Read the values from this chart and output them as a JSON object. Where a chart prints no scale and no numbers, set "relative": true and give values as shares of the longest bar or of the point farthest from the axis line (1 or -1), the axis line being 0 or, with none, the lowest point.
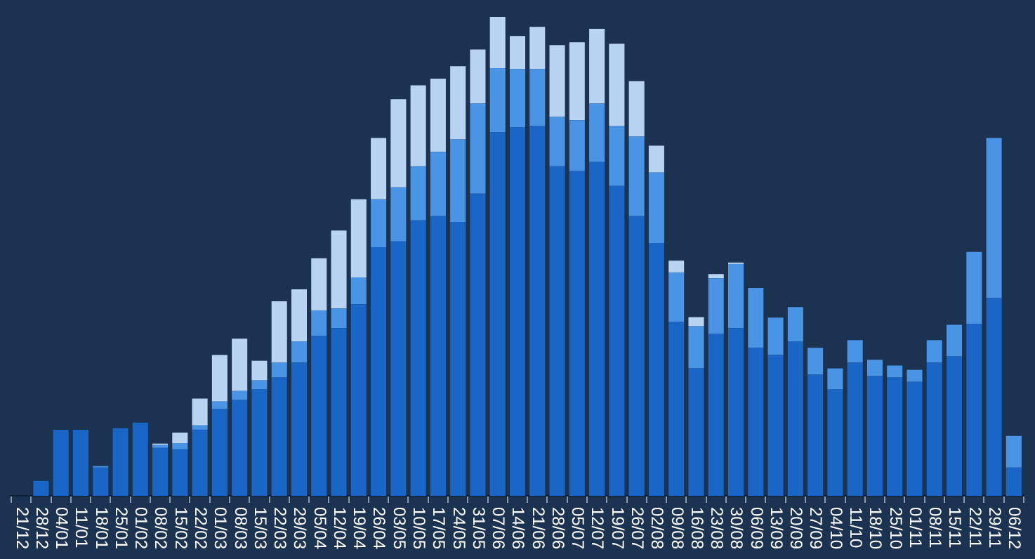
{
  "chart_data": {
    "type": "bar",
    "stacked": true,
    "relative": true,
    "legend": false,
    "grid": false,
    "categories": [
      "21/12",
      "28/12",
      "04/01",
      "11/01",
      "18/01",
      "25/01",
      "01/02",
      "08/02",
      "15/02",
      "22/02",
      "01/03",
      "08/03",
      "15/03",
      "22/03",
      "29/03",
      "05/04",
      "12/04",
      "19/04",
      "26/04",
      "03/05",
      "10/05",
      "17/05",
      "24/05",
      "31/05",
      "07/06",
      "14/06",
      "21/06",
      "28/06",
      "05/07",
      "12/07",
      "19/07",
      "26/07",
      "02/08",
      "09/08",
      "16/08",
      "23/08",
      "30/08",
      "06/09",
      "13/09",
      "20/09",
      "27/09",
      "04/10",
      "11/10",
      "18/10",
      "25/10",
      "01/11",
      "08/11",
      "15/11",
      "22/11",
      "29/11",
      "06/12"
    ],
    "series": [
      {
        "color": "#1a66c6",
        "values": [
          0,
          0.031,
          0.138,
          0.138,
          0.059,
          0.141,
          0.153,
          0.1,
          0.097,
          0.138,
          0.181,
          0.2,
          0.222,
          0.247,
          0.278,
          0.334,
          0.35,
          0.4,
          0.519,
          0.531,
          0.575,
          0.584,
          0.572,
          0.631,
          0.759,
          0.769,
          0.772,
          0.688,
          0.678,
          0.697,
          0.647,
          0.584,
          0.528,
          0.363,
          0.266,
          0.338,
          0.35,
          0.309,
          0.294,
          0.322,
          0.253,
          0.222,
          0.278,
          0.25,
          0.247,
          0.238,
          0.278,
          0.291,
          0.359,
          0.413,
          0.059
        ]
      },
      {
        "color": "#4a94e6",
        "values": [
          0,
          0,
          0,
          0,
          0.003,
          0,
          0,
          0.006,
          0.013,
          0.009,
          0.016,
          0.019,
          0.019,
          0.031,
          0.044,
          0.053,
          0.041,
          0.056,
          0.1,
          0.113,
          0.113,
          0.134,
          0.172,
          0.188,
          0.134,
          0.122,
          0.119,
          0.103,
          0.106,
          0.122,
          0.125,
          0.166,
          0.147,
          0.103,
          0.088,
          0.116,
          0.134,
          0.125,
          0.078,
          0.072,
          0.056,
          0.044,
          0.047,
          0.034,
          0.025,
          0.025,
          0.047,
          0.066,
          0.15,
          0.334,
          0.066
        ]
      },
      {
        "color": "#b9d4f2",
        "values": [
          0,
          0,
          0,
          0,
          0,
          0,
          0,
          0.003,
          0.022,
          0.056,
          0.097,
          0.109,
          0.041,
          0.128,
          0.109,
          0.109,
          0.163,
          0.163,
          0.128,
          0.184,
          0.169,
          0.153,
          0.153,
          0.113,
          0.107,
          0.069,
          0.088,
          0.15,
          0.163,
          0.156,
          0.172,
          0.116,
          0.056,
          0.025,
          0.019,
          0.009,
          0.003,
          0,
          0,
          0,
          0,
          0,
          0,
          0,
          0,
          0,
          0,
          0,
          0,
          0,
          0
        ]
      }
    ]
  }
}
